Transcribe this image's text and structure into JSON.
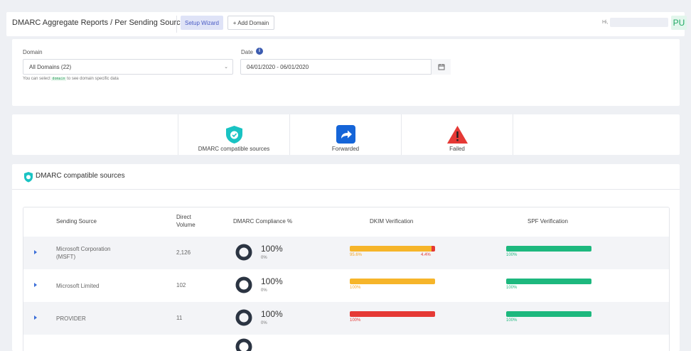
{
  "header": {
    "title": "DMARC Aggregate Reports / Per Sending Source",
    "setup_wizard": "Setup Wizard",
    "add_domain": "+ Add Domain",
    "greeting": "Hi,",
    "avatar_initials": "PU"
  },
  "filters": {
    "domain_label": "Domain",
    "domain_value": "All Domains (22)",
    "hint_prefix": "You can select",
    "hint_code": "domain",
    "hint_suffix": "to see domain specific data",
    "date_label": "Date",
    "date_value": "04/01/2020 - 06/01/2020"
  },
  "categories": [
    {
      "label": "DMARC compatible sources",
      "icon": "shield-check-icon",
      "color": "#19c3c3"
    },
    {
      "label": "Forwarded",
      "icon": "forward-arrow-icon",
      "color": "#1565d8"
    },
    {
      "label": "Failed",
      "icon": "warning-triangle-icon",
      "color": "#e53935"
    }
  ],
  "section": {
    "title": "DMARC compatible sources"
  },
  "table": {
    "headers": {
      "source": "Sending Source",
      "volume_line1": "Direct",
      "volume_line2": "Volume",
      "compliance": "DMARC Compliance %",
      "dkim": "DKIM Verification",
      "spf": "SPF Verification"
    },
    "rows": [
      {
        "source_line1": "Microsoft Corporation",
        "source_line2": "(MSFT)",
        "volume": "2,126",
        "compliance": "100%",
        "compliance_sub": "0%",
        "dkim": [
          {
            "label": "95.6%",
            "value": 95.6,
            "color": "#f6b52a"
          },
          {
            "label": "4.4%",
            "value": 4.4,
            "color": "#e53935"
          }
        ],
        "spf": [
          {
            "label": "100%",
            "value": 100,
            "color": "#1db87e"
          }
        ]
      },
      {
        "source_line1": "Microsoft Limited",
        "source_line2": "",
        "volume": "102",
        "compliance": "100%",
        "compliance_sub": "0%",
        "dkim": [
          {
            "label": "100%",
            "value": 100,
            "color": "#f6b52a"
          }
        ],
        "spf": [
          {
            "label": "100%",
            "value": 100,
            "color": "#1db87e"
          }
        ]
      },
      {
        "source_line1": "PROVIDER",
        "source_line2": "",
        "volume": "11",
        "compliance": "100%",
        "compliance_sub": "0%",
        "dkim": [
          {
            "label": "100%",
            "value": 100,
            "color": "#e53935"
          }
        ],
        "spf": [
          {
            "label": "100%",
            "value": 100,
            "color": "#1db87e"
          }
        ]
      }
    ]
  }
}
